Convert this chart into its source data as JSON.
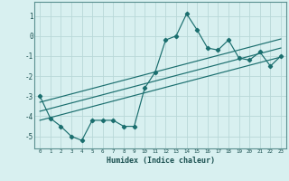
{
  "xlabel": "Humidex (Indice chaleur)",
  "bg_color": "#d8f0f0",
  "grid_color": "#b8d8d8",
  "line_color": "#1a6e6e",
  "xlim": [
    -0.5,
    23.5
  ],
  "ylim": [
    -5.6,
    1.7
  ],
  "xticks": [
    0,
    1,
    2,
    3,
    4,
    5,
    6,
    7,
    8,
    9,
    10,
    11,
    12,
    13,
    14,
    15,
    16,
    17,
    18,
    19,
    20,
    21,
    22,
    23
  ],
  "yticks": [
    -5,
    -4,
    -3,
    -2,
    -1,
    0,
    1
  ],
  "main_x": [
    0,
    1,
    2,
    3,
    4,
    5,
    6,
    7,
    8,
    9,
    10,
    11,
    12,
    13,
    14,
    15,
    16,
    17,
    18,
    19,
    20,
    21,
    22,
    23
  ],
  "main_y": [
    -3.0,
    -4.1,
    -4.5,
    -5.0,
    -5.2,
    -4.2,
    -4.2,
    -4.2,
    -4.5,
    -4.5,
    -2.6,
    -1.8,
    -0.2,
    0.0,
    1.1,
    0.3,
    -0.6,
    -0.7,
    -0.2,
    -1.1,
    -1.2,
    -0.8,
    -1.5,
    -1.0
  ],
  "reg_line1_x": [
    0,
    23
  ],
  "reg_line1_y": [
    -4.2,
    -1.05
  ],
  "reg_line2_x": [
    0,
    23
  ],
  "reg_line2_y": [
    -3.75,
    -0.6
  ],
  "reg_line3_x": [
    0,
    23
  ],
  "reg_line3_y": [
    -3.3,
    -0.15
  ]
}
